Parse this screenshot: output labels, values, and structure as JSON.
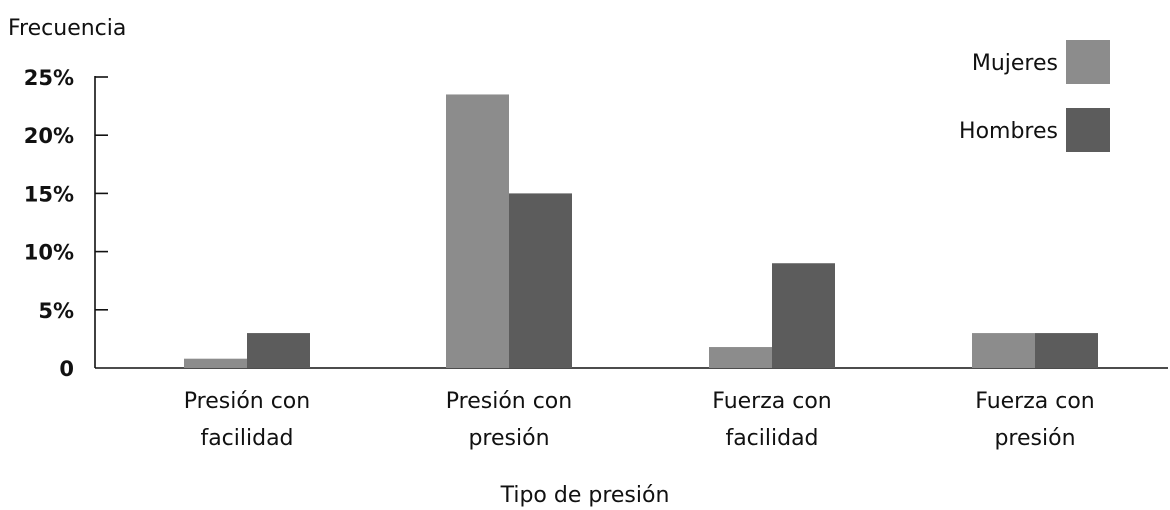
{
  "chart_data": {
    "type": "bar",
    "title": "",
    "ylabel": "Frecuencia",
    "xlabel": "Tipo de presión",
    "categories": [
      [
        "Presión con",
        "facilidad"
      ],
      [
        "Presión con",
        "presión"
      ],
      [
        "Fuerza con",
        "facilidad"
      ],
      [
        "Fuerza con",
        "presión"
      ]
    ],
    "series": [
      {
        "name": "Mujeres",
        "color": "#8c8c8c",
        "values": [
          0.8,
          23.5,
          1.8,
          3.0
        ]
      },
      {
        "name": "Hombres",
        "color": "#5c5c5c",
        "values": [
          3.0,
          15.0,
          9.0,
          3.0
        ]
      }
    ],
    "yticks": [
      {
        "value": 0,
        "label": "0"
      },
      {
        "value": 5,
        "label": "5%"
      },
      {
        "value": 10,
        "label": "10%"
      },
      {
        "value": 15,
        "label": "15%"
      },
      {
        "value": 20,
        "label": "20%"
      },
      {
        "value": 25,
        "label": "25%"
      }
    ],
    "ylim": [
      0,
      25
    ],
    "grid": false,
    "legend": "top-right"
  }
}
